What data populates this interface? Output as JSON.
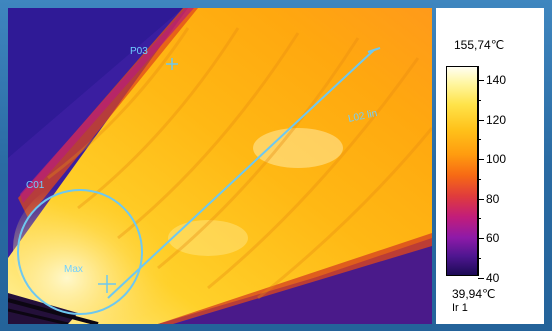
{
  "thermal_image": {
    "palette": "iron",
    "overlays": {
      "point_label": "P03",
      "line_label": "L02 lin",
      "circle_label": "C01",
      "max_label": "Max"
    }
  },
  "scale": {
    "max_label": "155,74℃",
    "min_label": "39,94℃",
    "source_label": "Ir 1",
    "ticks": [
      "140",
      "120",
      "100",
      "80",
      "60",
      "40"
    ]
  }
}
